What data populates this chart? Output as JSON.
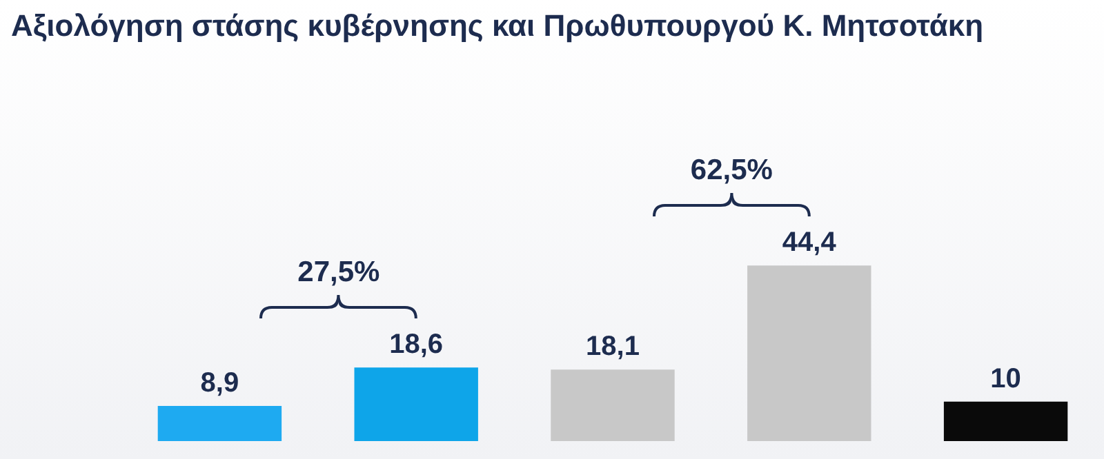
{
  "chart_data": {
    "type": "bar",
    "title": "Αξιολόγηση στάσης κυβέρνησης και Πρωθυπουργού Κ. Μητσοτάκη",
    "categories": [
      null,
      null,
      null,
      null,
      null
    ],
    "values": [
      8.9,
      18.6,
      18.1,
      44.4,
      10
    ],
    "colors": [
      "#1eaaf1",
      "#0ea5e9",
      "#c8c8c8",
      "#c8c8c8",
      "#0a0a0a"
    ],
    "value_labels": [
      "8,9",
      "18,6",
      "18,1",
      "44,4",
      "10"
    ],
    "annotations": [
      "27,5%",
      "62,5%"
    ],
    "legend": false
  }
}
